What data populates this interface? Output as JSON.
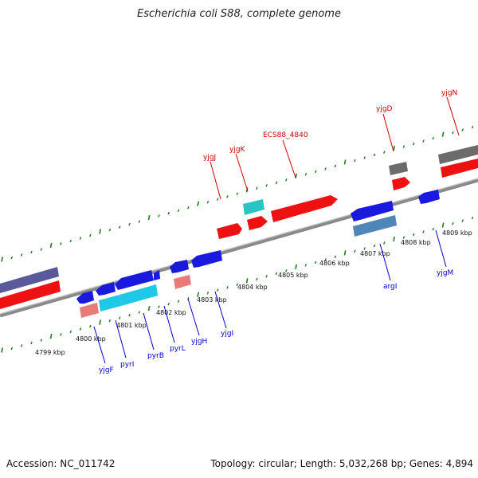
{
  "title": "Escherichia coli S88, complete genome",
  "accession": "Accession: NC_011742",
  "summary": "Topology: circular; Length: 5,032,268 bp; Genes: 4,894",
  "colors": {
    "background": "#ffffff",
    "backbone": "#8a8a8a",
    "tick_green": "#1f7a1f",
    "forward_label": "#cc0000",
    "reverse_label": "#0000cc",
    "red_gene": "#ee1111",
    "blue_gene": "#1a1adf",
    "cyan_gene": "#20c8e8",
    "teal_gene": "#2bc4c4",
    "pink_gene": "#e87a7a",
    "steel_gene": "#4f86b8",
    "grey_gene": "#6b6b6b",
    "purple_gene": "#5a5a9a"
  },
  "scale_labels": [
    "4799 kbp",
    "4800 kbp",
    "4801 kbp",
    "4802 kbp",
    "4803 kbp",
    "4804 kbp",
    "4805 kbp",
    "4806 kbp",
    "4807 kbp",
    "4808 kbp",
    "4809 kbp"
  ],
  "forward_gene_labels": [
    "yjgJ",
    "yjgK",
    "ECS88_4840",
    "yjgD",
    "yjgN"
  ],
  "reverse_gene_labels": [
    "yjgF",
    "pyrI",
    "pyrB",
    "pyrL",
    "yjgH",
    "yjgI",
    "argI",
    "yjgM"
  ]
}
